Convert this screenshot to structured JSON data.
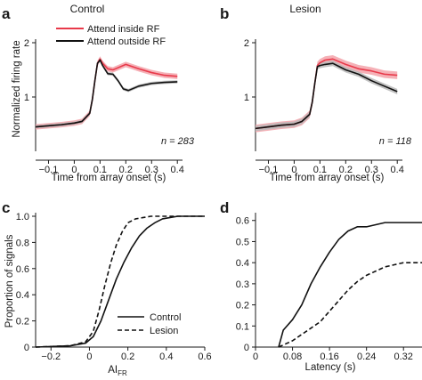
{
  "colors": {
    "red": "#e8394a",
    "red_band": "#f3a3aa",
    "black": "#111111",
    "gray_band": "#b9b9b9"
  },
  "chart_data": [
    {
      "panel": "a",
      "type": "line",
      "title": "Control",
      "xlabel": "Time from array onset (s)",
      "ylabel": "Normalized firing rate",
      "xlim": [
        -0.15,
        0.42
      ],
      "ylim": [
        0,
        2
      ],
      "xticks": [
        -0.1,
        0,
        0.1,
        0.2,
        0.3,
        0.4
      ],
      "xtick_labels": [
        "−0.1",
        "0",
        "0.1",
        "0.2",
        "0.3",
        "0.4"
      ],
      "yticks": [
        1,
        2
      ],
      "ytick_labels": [
        "1",
        "2"
      ],
      "annotation": "n = 283",
      "legend_position": "top",
      "series": [
        {
          "name": "Attend inside RF",
          "color": "#e8394a",
          "band": 0.05,
          "x": [
            -0.15,
            -0.1,
            -0.05,
            0.0,
            0.03,
            0.06,
            0.07,
            0.08,
            0.09,
            0.1,
            0.11,
            0.13,
            0.15,
            0.17,
            0.2,
            0.25,
            0.3,
            0.35,
            0.4
          ],
          "y": [
            0.45,
            0.47,
            0.49,
            0.52,
            0.55,
            0.7,
            0.95,
            1.3,
            1.62,
            1.7,
            1.62,
            1.52,
            1.5,
            1.54,
            1.6,
            1.52,
            1.45,
            1.4,
            1.38
          ]
        },
        {
          "name": "Attend outside RF",
          "color": "#111111",
          "band": 0.03,
          "x": [
            -0.15,
            -0.1,
            -0.05,
            0.0,
            0.03,
            0.06,
            0.07,
            0.08,
            0.09,
            0.1,
            0.11,
            0.13,
            0.15,
            0.17,
            0.19,
            0.21,
            0.25,
            0.3,
            0.35,
            0.4
          ],
          "y": [
            0.45,
            0.47,
            0.49,
            0.52,
            0.55,
            0.7,
            0.95,
            1.3,
            1.62,
            1.68,
            1.58,
            1.43,
            1.42,
            1.3,
            1.15,
            1.12,
            1.2,
            1.25,
            1.27,
            1.28
          ]
        }
      ]
    },
    {
      "panel": "b",
      "type": "line",
      "title": "Lesion",
      "xlabel": "Time from array onset (s)",
      "ylabel": "",
      "xlim": [
        -0.15,
        0.42
      ],
      "ylim": [
        0,
        2
      ],
      "xticks": [
        -0.1,
        0,
        0.1,
        0.2,
        0.3,
        0.4
      ],
      "xtick_labels": [
        "−0.1",
        "0",
        "0.1",
        "0.2",
        "0.3",
        "0.4"
      ],
      "yticks": [
        1,
        2
      ],
      "ytick_labels": [
        "1",
        "2"
      ],
      "annotation": "n = 118",
      "series": [
        {
          "name": "Attend inside RF",
          "color": "#e8394a",
          "band": 0.07,
          "x": [
            -0.15,
            -0.1,
            -0.05,
            0.0,
            0.03,
            0.06,
            0.07,
            0.08,
            0.09,
            0.1,
            0.12,
            0.15,
            0.2,
            0.25,
            0.3,
            0.35,
            0.4
          ],
          "y": [
            0.42,
            0.45,
            0.48,
            0.5,
            0.55,
            0.68,
            0.9,
            1.25,
            1.58,
            1.63,
            1.68,
            1.7,
            1.6,
            1.52,
            1.48,
            1.42,
            1.4
          ]
        },
        {
          "name": "Attend outside RF",
          "color": "#111111",
          "band": 0.05,
          "x": [
            -0.15,
            -0.1,
            -0.05,
            0.0,
            0.03,
            0.06,
            0.07,
            0.08,
            0.09,
            0.1,
            0.12,
            0.15,
            0.2,
            0.25,
            0.3,
            0.35,
            0.4
          ],
          "y": [
            0.42,
            0.45,
            0.48,
            0.5,
            0.55,
            0.68,
            0.9,
            1.25,
            1.56,
            1.58,
            1.6,
            1.62,
            1.5,
            1.42,
            1.3,
            1.2,
            1.1
          ]
        }
      ]
    },
    {
      "panel": "c",
      "type": "line",
      "xlabel": "AI",
      "xlabel_sub": "FR",
      "ylabel": "Proportion of signals",
      "xlim": [
        -0.28,
        0.6
      ],
      "ylim": [
        0,
        1.0
      ],
      "xticks": [
        -0.2,
        0,
        0.2,
        0.4,
        0.6
      ],
      "xtick_labels": [
        "−0.2",
        "0",
        "0.2",
        "0.4",
        "0.6"
      ],
      "yticks": [
        0,
        0.2,
        0.4,
        0.6,
        0.8,
        1.0
      ],
      "ytick_labels": [
        "0",
        "0.2",
        "0.4",
        "0.6",
        "0.8",
        "1.0"
      ],
      "legend_position": "bottom-right",
      "series": [
        {
          "name": "Control",
          "color": "#111111",
          "dash": false,
          "x": [
            -0.28,
            -0.1,
            -0.02,
            0.02,
            0.06,
            0.1,
            0.14,
            0.18,
            0.22,
            0.26,
            0.3,
            0.34,
            0.38,
            0.42,
            0.46,
            0.5,
            0.6
          ],
          "y": [
            0.0,
            0.01,
            0.03,
            0.08,
            0.2,
            0.36,
            0.52,
            0.65,
            0.76,
            0.85,
            0.91,
            0.95,
            0.98,
            0.99,
            1.0,
            1.0,
            1.0
          ]
        },
        {
          "name": "Lesion",
          "color": "#111111",
          "dash": true,
          "x": [
            -0.28,
            -0.1,
            -0.02,
            0.02,
            0.05,
            0.08,
            0.11,
            0.14,
            0.17,
            0.2,
            0.24,
            0.28,
            0.32,
            0.36,
            0.6
          ],
          "y": [
            0.0,
            0.01,
            0.04,
            0.12,
            0.28,
            0.47,
            0.64,
            0.78,
            0.88,
            0.95,
            0.98,
            0.99,
            1.0,
            1.0,
            1.0
          ]
        }
      ]
    },
    {
      "panel": "d",
      "type": "line",
      "xlabel": "Latency (s)",
      "ylabel": "",
      "xlim": [
        0,
        0.36
      ],
      "ylim": [
        0,
        0.62
      ],
      "xticks": [
        0,
        0.08,
        0.16,
        0.24,
        0.32
      ],
      "xtick_labels": [
        "0",
        "0.08",
        "0.16",
        "0.24",
        "0.32"
      ],
      "yticks": [
        0,
        0.1,
        0.2,
        0.3,
        0.4,
        0.5,
        0.6
      ],
      "ytick_labels": [
        "0",
        "0.1",
        "0.2",
        "0.3",
        "0.4",
        "0.5",
        "0.6"
      ],
      "series": [
        {
          "name": "Control",
          "color": "#111111",
          "dash": false,
          "x": [
            0.05,
            0.06,
            0.08,
            0.1,
            0.12,
            0.14,
            0.16,
            0.18,
            0.2,
            0.22,
            0.24,
            0.26,
            0.28,
            0.36
          ],
          "y": [
            0.0,
            0.08,
            0.13,
            0.2,
            0.3,
            0.38,
            0.45,
            0.51,
            0.55,
            0.57,
            0.57,
            0.58,
            0.59,
            0.59
          ]
        },
        {
          "name": "Lesion",
          "color": "#111111",
          "dash": true,
          "x": [
            0.05,
            0.06,
            0.08,
            0.1,
            0.12,
            0.14,
            0.16,
            0.18,
            0.2,
            0.22,
            0.24,
            0.26,
            0.28,
            0.3,
            0.32,
            0.36
          ],
          "y": [
            0.0,
            0.01,
            0.03,
            0.06,
            0.09,
            0.12,
            0.17,
            0.22,
            0.27,
            0.31,
            0.34,
            0.36,
            0.38,
            0.39,
            0.4,
            0.4
          ]
        }
      ]
    }
  ]
}
